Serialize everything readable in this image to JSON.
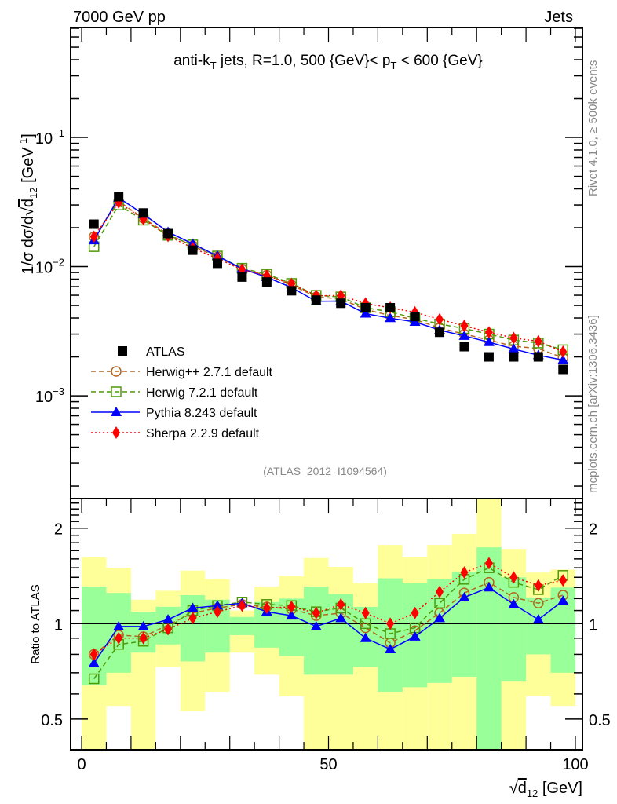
{
  "chart_data": [
    {
      "type": "line",
      "panel": "main",
      "header_left": "7000 GeV pp",
      "header_right": "Jets",
      "title_parts": {
        "a": "anti-k",
        "a_sub": "T",
        "b": " jets, R=1.0, 500 {GeV}< p",
        "b_sub": "T",
        "c": " < 600 {GeV}"
      },
      "ylabel": "1/σ dσ/d√d12 [GeV⁻¹]",
      "ylabel_parts": {
        "main": "1/σ dσ/d",
        "sqrt_arg": "d",
        "sub": "12",
        "unit": " [GeV",
        "sup": "-1",
        "close": "]"
      },
      "yscale": "log",
      "ylim": [
        0.00016,
        0.71
      ],
      "y_ticks": [
        {
          "base": "10",
          "exp": "-1",
          "value": 0.1
        },
        {
          "base": "10",
          "exp": "-2",
          "value": 0.01
        },
        {
          "base": "10",
          "exp": "-3",
          "value": 0.001
        }
      ],
      "xlim": [
        -2,
        102
      ],
      "x": [
        2.5,
        7.5,
        12.5,
        17.5,
        22.5,
        27.5,
        32.5,
        37.5,
        42.5,
        47.5,
        52.5,
        57.5,
        62.5,
        67.5,
        72.5,
        77.5,
        82.5,
        87.5,
        92.5,
        97.5
      ],
      "atlas": [
        0.0213,
        0.0348,
        0.026,
        0.018,
        0.0134,
        0.0106,
        0.0083,
        0.0076,
        0.0065,
        0.0055,
        0.0052,
        0.0048,
        0.0048,
        0.0041,
        0.0031,
        0.0024,
        0.002,
        0.002,
        0.002,
        0.0016
      ],
      "series": [
        {
          "name": "Herwig++ 2.7.1 default",
          "color": "#b5651d",
          "marker": "circle-open",
          "line": "dashed",
          "ratio": [
            0.8,
            0.92,
            0.91,
            0.99,
            1.08,
            1.12,
            1.15,
            1.13,
            1.11,
            1.06,
            1.08,
            0.97,
            0.87,
            0.95,
            1.08,
            1.25,
            1.35,
            1.21,
            1.16,
            1.23
          ]
        },
        {
          "name": "Herwig 7.2.1 default",
          "color": "#4e9a06",
          "marker": "square-open",
          "line": "dashed",
          "ratio": [
            0.67,
            0.86,
            0.88,
            0.97,
            1.1,
            1.14,
            1.17,
            1.15,
            1.14,
            1.09,
            1.12,
            1.0,
            0.93,
            0.97,
            1.16,
            1.38,
            1.5,
            1.35,
            1.28,
            1.42
          ]
        },
        {
          "name": "Pythia 8.243 default",
          "color": "#0000ff",
          "marker": "triangle",
          "line": "solid",
          "ratio": [
            0.75,
            0.98,
            0.98,
            1.03,
            1.12,
            1.14,
            1.16,
            1.09,
            1.06,
            0.98,
            1.04,
            0.9,
            0.83,
            0.91,
            1.04,
            1.21,
            1.3,
            1.15,
            1.03,
            1.18
          ]
        },
        {
          "name": "Sherpa 2.2.9 default",
          "color": "#ff0000",
          "marker": "diamond",
          "line": "dotted",
          "ratio": [
            0.8,
            0.9,
            0.9,
            0.96,
            1.04,
            1.09,
            1.14,
            1.12,
            1.13,
            1.08,
            1.15,
            1.08,
            1.0,
            1.08,
            1.26,
            1.45,
            1.55,
            1.4,
            1.32,
            1.37
          ]
        }
      ],
      "legend": {
        "placement": "bottom-left",
        "entries": [
          "ATLAS",
          "Herwig++ 2.7.1 default",
          "Herwig 7.2.1 default",
          "Pythia 8.243 default",
          "Sherpa 2.2.9 default"
        ]
      },
      "reference": "(ATLAS_2012_I1094564)",
      "side_text_top": "Rivet 4.1.0, ≥ 500k events",
      "side_text_bottom": "mcplots.cern.ch [arXiv:1306.3436]"
    },
    {
      "type": "line",
      "panel": "ratio",
      "ylabel": "Ratio to ATLAS",
      "yscale": "log",
      "ylim": [
        0.4,
        2.48
      ],
      "y_ticks": [
        {
          "label": "2",
          "value": 2
        },
        {
          "label": "1",
          "value": 1
        },
        {
          "label": "0.5",
          "value": 0.5
        }
      ],
      "x_ticks": [
        {
          "label": "0",
          "value": 0
        },
        {
          "label": "50",
          "value": 50
        },
        {
          "label": "100",
          "value": 100
        }
      ],
      "xlabel_parts": {
        "sqrt_arg": "d",
        "sub": "12",
        "unit": " [GeV]"
      },
      "xlabel": "√d12 [GeV]",
      "bin_edges": [
        0,
        5,
        10,
        15,
        20,
        25,
        30,
        35,
        40,
        45,
        50,
        55,
        60,
        65,
        70,
        75,
        80,
        85,
        90,
        95,
        100
      ],
      "band_inner": [
        [
          0.64,
          1.31
        ],
        [
          0.7,
          1.25
        ],
        [
          0.81,
          1.09
        ],
        [
          0.86,
          1.13
        ],
        [
          0.76,
          1.23
        ],
        [
          0.81,
          1.19
        ],
        [
          0.92,
          1.05
        ],
        [
          0.84,
          1.17
        ],
        [
          0.79,
          1.2
        ],
        [
          0.69,
          1.31
        ],
        [
          0.69,
          1.24
        ],
        [
          0.73,
          1.13
        ],
        [
          0.61,
          1.39
        ],
        [
          0.63,
          1.34
        ],
        [
          0.65,
          1.38
        ],
        [
          0.68,
          1.46
        ],
        [
          0.4,
          1.74
        ],
        [
          0.66,
          1.4
        ],
        [
          0.8,
          1.21
        ],
        [
          0.7,
          1.3
        ]
      ],
      "band_outer": [
        [
          0.4,
          1.62
        ],
        [
          0.55,
          1.5
        ],
        [
          0.4,
          1.19
        ],
        [
          0.73,
          1.27
        ],
        [
          0.53,
          1.47
        ],
        [
          0.61,
          1.38
        ],
        [
          0.81,
          1.1
        ],
        [
          0.69,
          1.31
        ],
        [
          0.59,
          1.41
        ],
        [
          0.4,
          1.61
        ],
        [
          0.4,
          1.51
        ],
        [
          0.4,
          1.34
        ],
        [
          0.4,
          1.77
        ],
        [
          0.4,
          1.62
        ],
        [
          0.4,
          1.77
        ],
        [
          0.4,
          1.92
        ],
        [
          0.4,
          2.48
        ],
        [
          0.4,
          1.72
        ],
        [
          0.59,
          1.45
        ],
        [
          0.55,
          1.48
        ]
      ],
      "band_colors": {
        "inner": "#99ff99",
        "outer": "#ffff99"
      }
    }
  ]
}
